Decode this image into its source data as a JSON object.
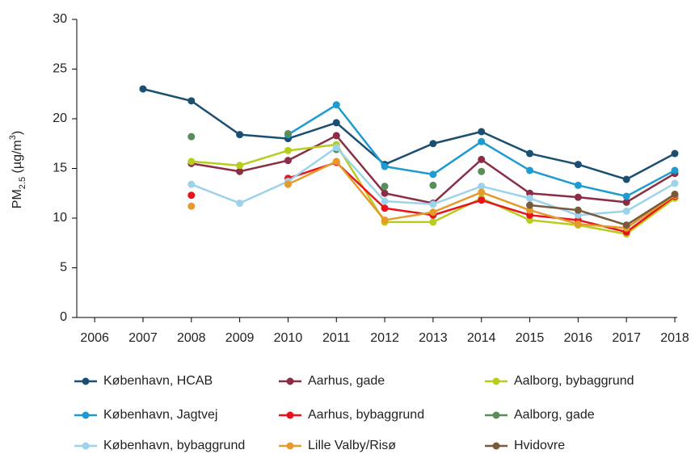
{
  "chart_data": {
    "type": "line",
    "y_label_parts": [
      "PM",
      "2.5",
      " (µg/m",
      "3",
      ")"
    ],
    "x": [
      2006,
      2007,
      2008,
      2009,
      2010,
      2011,
      2012,
      2013,
      2014,
      2015,
      2016,
      2017,
      2018
    ],
    "xlim": [
      2005.63,
      2018.05
    ],
    "xticks": [
      2006,
      2007,
      2008,
      2009,
      2010,
      2011,
      2012,
      2013,
      2014,
      2015,
      2016,
      2017,
      2018
    ],
    "ylim": [
      0,
      30
    ],
    "yticks": [
      0,
      5,
      10,
      15,
      20,
      25,
      30
    ],
    "series": [
      {
        "name": "København, HCAB",
        "color": "#1a4f72",
        "values": [
          null,
          23.0,
          21.8,
          18.4,
          18.0,
          19.6,
          15.4,
          17.5,
          18.7,
          16.5,
          15.4,
          13.9,
          16.5
        ]
      },
      {
        "name": "Aarhus, gade",
        "color": "#8b2d45",
        "values": [
          null,
          null,
          15.5,
          14.7,
          15.8,
          18.3,
          12.5,
          11.5,
          15.9,
          12.5,
          12.1,
          11.6,
          14.5
        ]
      },
      {
        "name": "Aalborg, bybaggrund",
        "color": "#b8cc1e",
        "values": [
          null,
          null,
          15.7,
          15.3,
          16.8,
          17.4,
          9.6,
          9.6,
          12.0,
          9.8,
          9.3,
          8.4,
          12.0
        ]
      },
      {
        "name": "København, Jagtvej",
        "color": "#1e9bd0",
        "values": [
          null,
          null,
          null,
          null,
          18.4,
          21.4,
          15.2,
          14.4,
          17.7,
          14.8,
          13.3,
          12.2,
          14.8
        ]
      },
      {
        "name": "Aarhus, bybaggrund",
        "color": "#e8141b",
        "values": [
          null,
          null,
          12.3,
          null,
          14.0,
          15.6,
          11.0,
          10.3,
          11.8,
          10.3,
          9.8,
          8.6,
          12.2
        ]
      },
      {
        "name": "Aalborg, gade",
        "color": "#5b8c5a",
        "line": false,
        "values": [
          null,
          null,
          18.2,
          null,
          18.5,
          16.9,
          13.2,
          13.3,
          14.7,
          null,
          null,
          null,
          null
        ]
      },
      {
        "name": "København, bybaggrund",
        "color": "#9dd3ea",
        "values": [
          null,
          null,
          13.4,
          11.5,
          13.7,
          17.1,
          11.7,
          11.4,
          13.2,
          12.0,
          10.3,
          10.7,
          13.5
        ]
      },
      {
        "name": "Lille Valby/Risø",
        "color": "#e59a2b",
        "values": [
          null,
          null,
          11.2,
          null,
          13.4,
          15.7,
          9.8,
          10.6,
          12.6,
          10.8,
          9.4,
          9.0,
          12.3
        ]
      },
      {
        "name": "Hvidovre",
        "color": "#7a5a3a",
        "values": [
          null,
          null,
          null,
          null,
          null,
          null,
          null,
          null,
          null,
          11.3,
          10.8,
          9.3,
          12.4
        ]
      }
    ]
  }
}
